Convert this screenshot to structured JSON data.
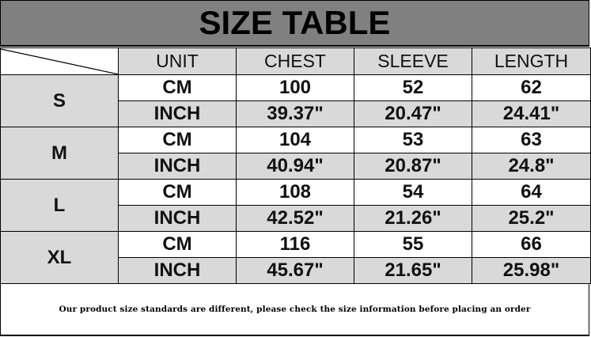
{
  "title": "SIZE TABLE",
  "columns": [
    "UNIT",
    "CHEST",
    "SLEEVE",
    "LENGTH"
  ],
  "sizes": [
    {
      "size": "S",
      "rows": [
        [
          "CM",
          "100",
          "52",
          "62"
        ],
        [
          "INCH",
          "39.37\"",
          "20.47\"",
          "24.41\""
        ]
      ]
    },
    {
      "size": "M",
      "rows": [
        [
          "CM",
          "104",
          "53",
          "63"
        ],
        [
          "INCH",
          "40.94\"",
          "20.87\"",
          "24.8\""
        ]
      ]
    },
    {
      "size": "L",
      "rows": [
        [
          "CM",
          "108",
          "54",
          "64"
        ],
        [
          "INCH",
          "42.52\"",
          "21.26\"",
          "25.2\""
        ]
      ]
    },
    {
      "size": "XL",
      "rows": [
        [
          "CM",
          "116",
          "55",
          "66"
        ],
        [
          "INCH",
          "45.67\"",
          "21.65\"",
          "25.98\""
        ]
      ]
    }
  ],
  "footer": "Our product size standards are different, please check the size information before placing an order",
  "colors": {
    "title_bg": "#808080",
    "cell_gray": "#d9d9d9"
  }
}
